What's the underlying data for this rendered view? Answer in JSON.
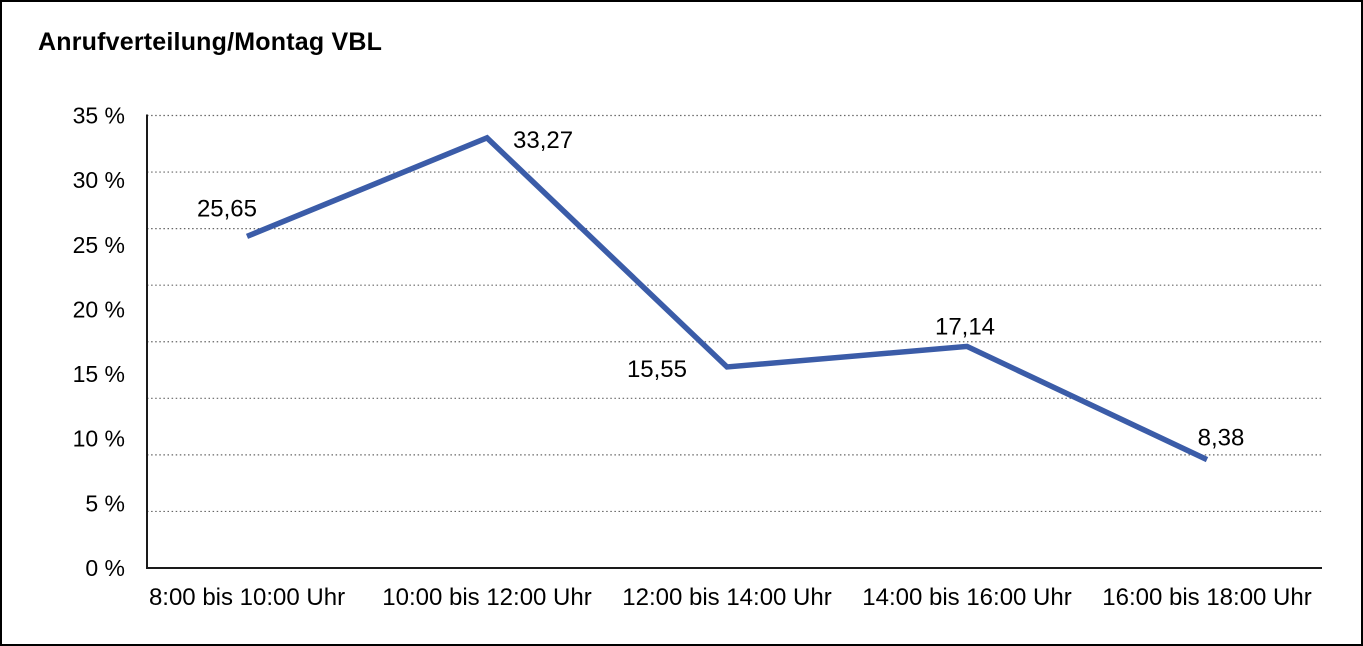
{
  "window": {
    "background_color": "#ffffff",
    "border_color": "#000000"
  },
  "title": "Anrufverteilung/Montag VBL",
  "chart_data": {
    "type": "line",
    "title": "Anrufverteilung/Montag VBL",
    "categories": [
      "8:00 bis 10:00 Uhr",
      "10:00 bis 12:00 Uhr",
      "12:00 bis 14:00 Uhr",
      "14:00 bis 16:00 Uhr",
      "16:00 bis 18:00 Uhr"
    ],
    "values": [
      25.65,
      33.27,
      15.55,
      17.14,
      8.38
    ],
    "value_labels": [
      "25,65",
      "33,27",
      "15,55",
      "17,14",
      "8,38"
    ],
    "y_tick_labels": [
      "0 %",
      "5 %",
      "10 %",
      "15 %",
      "20 %",
      "25 %",
      "30 %",
      "35 %"
    ],
    "y_tick_step": 5,
    "ylim": [
      0,
      35
    ],
    "xlabel": "",
    "ylabel": "",
    "legend": "none",
    "grid": "horizontal-dotted",
    "grid_divisions": 8,
    "line_color": "#3B5CA8",
    "axis_color": "#1a1a1a",
    "grid_color": "#666666",
    "text_color": "#000000"
  }
}
